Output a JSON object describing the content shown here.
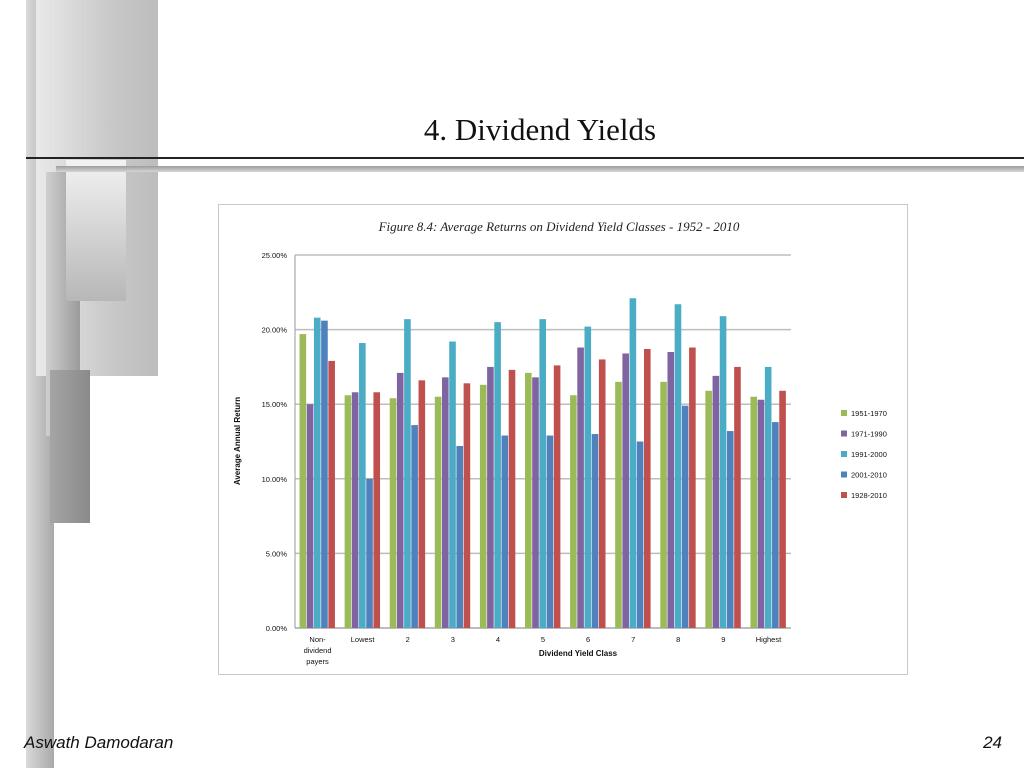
{
  "slide": {
    "title": "4. Dividend Yields",
    "author": "Aswath Damodaran",
    "page_number": "24"
  },
  "chart_data": {
    "type": "bar",
    "title": "Figure 8.4: Average Returns on Dividend Yield Classes - 1952 - 2010",
    "xlabel": "Dividend Yield Class",
    "ylabel": "Average Annual Return",
    "ylim": [
      0,
      0.25
    ],
    "y_ticks": [
      "0.00%",
      "5.00%",
      "10.00%",
      "15.00%",
      "20.00%",
      "25.00%"
    ],
    "grid": true,
    "legend_position": "right",
    "categories": [
      "Non-dividend payers",
      "Lowest",
      "2",
      "3",
      "4",
      "5",
      "6",
      "7",
      "8",
      "9",
      "Highest"
    ],
    "category_lines": [
      [
        "Non-",
        "dividend",
        "payers"
      ],
      [
        "Lowest"
      ],
      [
        "2"
      ],
      [
        "3"
      ],
      [
        "4"
      ],
      [
        "5"
      ],
      [
        "6"
      ],
      [
        "7"
      ],
      [
        "8"
      ],
      [
        "9"
      ],
      [
        "Highest"
      ]
    ],
    "series": [
      {
        "name": "1951-1970",
        "color": "#9bbb59",
        "values": [
          0.197,
          0.156,
          0.154,
          0.155,
          0.163,
          0.171,
          0.156,
          0.165,
          0.165,
          0.159,
          0.155
        ]
      },
      {
        "name": "1971-1990",
        "color": "#8064a2",
        "values": [
          0.15,
          0.158,
          0.171,
          0.168,
          0.175,
          0.168,
          0.188,
          0.184,
          0.185,
          0.169,
          0.153
        ]
      },
      {
        "name": "1991-2000",
        "color": "#4bacc6",
        "values": [
          0.208,
          0.191,
          0.207,
          0.192,
          0.205,
          0.207,
          0.202,
          0.221,
          0.217,
          0.209,
          0.175
        ]
      },
      {
        "name": "2001-2010",
        "color": "#4f81bd",
        "values": [
          0.206,
          0.1,
          0.136,
          0.122,
          0.129,
          0.129,
          0.13,
          0.125,
          0.149,
          0.132,
          0.138
        ]
      },
      {
        "name": "1928-2010",
        "color": "#c0504d",
        "values": [
          0.179,
          0.158,
          0.166,
          0.164,
          0.173,
          0.176,
          0.18,
          0.187,
          0.188,
          0.175,
          0.159
        ]
      }
    ]
  }
}
